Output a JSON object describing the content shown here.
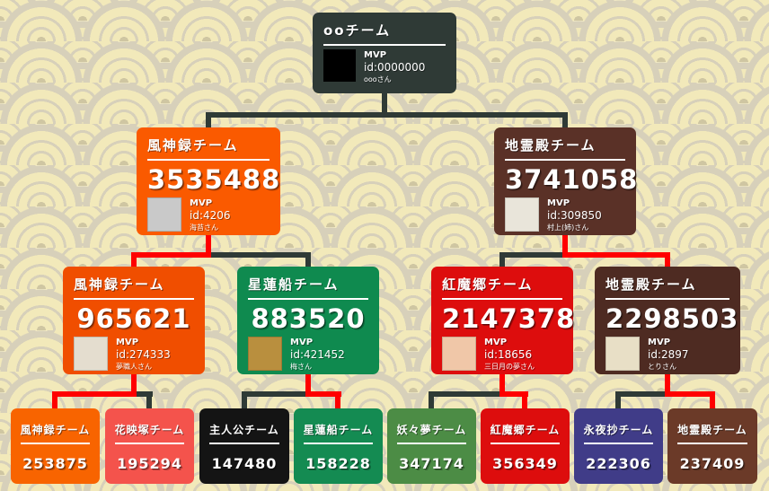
{
  "palette": {
    "page_bg": "#f7efc6",
    "pattern_arc": "#d7d0ba",
    "pattern_fill": "#f2e9ba",
    "pattern_center": "#cfc6a2",
    "winner_line": "#ff0000",
    "loser_line": "#2f3a36"
  },
  "tree": {
    "root": {
      "title": "ooチーム",
      "color": "#2f3a36",
      "avatar_color": "#000000",
      "mvp_label": "MVP",
      "mvp_id": "id:0000000",
      "mvp_name": "oooさん"
    },
    "semifinals": [
      {
        "title": "風神録チーム",
        "score": "3535488",
        "color": "#fa5a00",
        "avatar_color": "#c9c9c9",
        "mvp_label": "MVP",
        "mvp_id": "id:4206",
        "mvp_name": "海苔さん"
      },
      {
        "title": "地霊殿チーム",
        "score": "3741058",
        "color": "#5a3127",
        "avatar_color": "#e9e5da",
        "mvp_label": "MVP",
        "mvp_id": "id:309850",
        "mvp_name": "村上(姉)さん"
      }
    ],
    "quarterfinals": [
      {
        "title": "風神録チーム",
        "score": "965621",
        "color": "#f04e00",
        "avatar_color": "#e4ddcf",
        "mvp_label": "MVP",
        "mvp_id": "id:274333",
        "mvp_name": "夢職人さん"
      },
      {
        "title": "星蓮船チーム",
        "score": "883520",
        "color": "#0f8a4f",
        "avatar_color": "#b98f3e",
        "mvp_label": "MVP",
        "mvp_id": "id:421452",
        "mvp_name": "梅さん"
      },
      {
        "title": "紅魔郷チーム",
        "score": "2147378",
        "color": "#dd0d0d",
        "avatar_color": "#f0c7a8",
        "mvp_label": "MVP",
        "mvp_id": "id:18656",
        "mvp_name": "三日月の夢さん"
      },
      {
        "title": "地霊殿チーム",
        "score": "2298503",
        "color": "#4e2b22",
        "avatar_color": "#e8dfc6",
        "mvp_label": "MVP",
        "mvp_id": "id:2897",
        "mvp_name": "とりさん"
      }
    ],
    "first_round": [
      {
        "title": "風神録チーム",
        "score": "253875",
        "color": "#f86400"
      },
      {
        "title": "花映塚チーム",
        "score": "195294",
        "color": "#f4534c"
      },
      {
        "title": "主人公チーム",
        "score": "147480",
        "color": "#141414"
      },
      {
        "title": "星蓮船チーム",
        "score": "158228",
        "color": "#148b52"
      },
      {
        "title": "妖々夢チーム",
        "score": "347174",
        "color": "#4c8c45"
      },
      {
        "title": "紅魔郷チーム",
        "score": "356349",
        "color": "#dd0d0d"
      },
      {
        "title": "永夜抄チーム",
        "score": "222306",
        "color": "#403c88"
      },
      {
        "title": "地霊殿チーム",
        "score": "237409",
        "color": "#6b3a28"
      }
    ]
  }
}
